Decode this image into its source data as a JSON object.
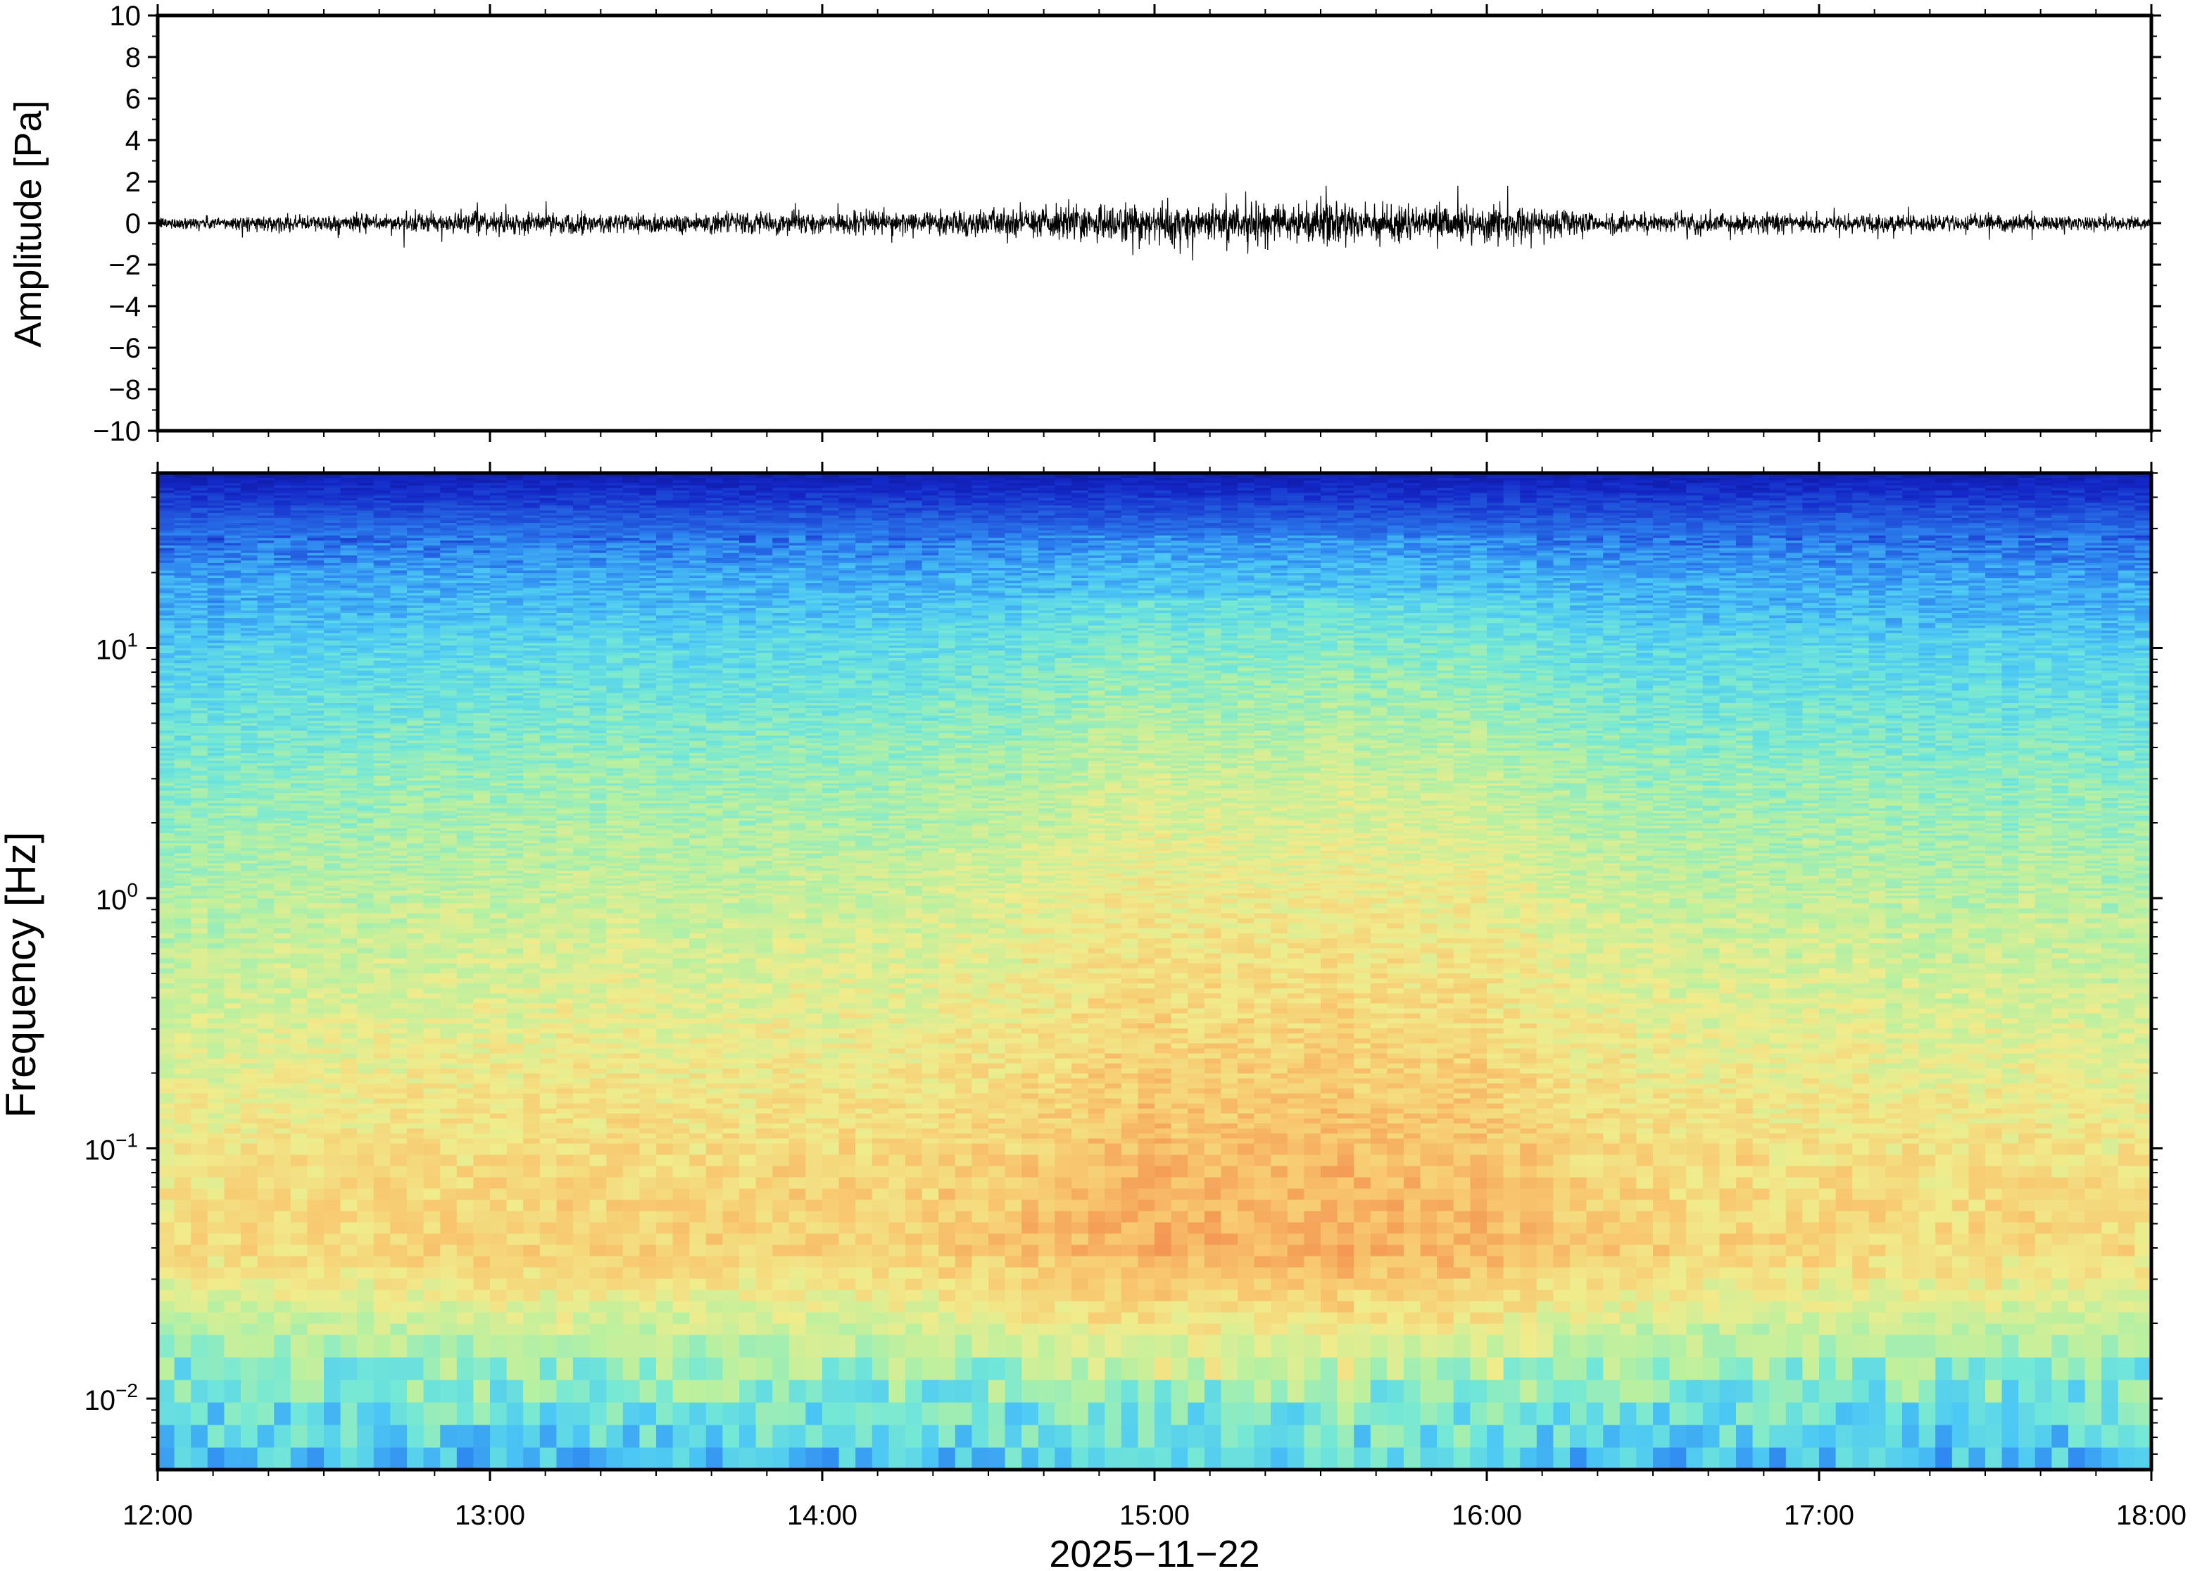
{
  "chart_data": [
    {
      "type": "line",
      "name": "waveform",
      "ylabel": "Amplitude [Pa]",
      "xlabel": "",
      "ylim": [
        -10,
        10
      ],
      "yticks": [
        "10",
        "8",
        "6",
        "4",
        "2",
        "0",
        "−2",
        "−4",
        "−6",
        "−8",
        "−10"
      ],
      "ytick_values": [
        10,
        8,
        6,
        4,
        2,
        0,
        -2,
        -4,
        -6,
        -8,
        -10
      ],
      "xlim": [
        "12:00",
        "18:00"
      ],
      "envelope": {
        "x_hours": [
          12.0,
          12.5,
          13.0,
          13.5,
          14.0,
          14.5,
          14.8,
          15.0,
          15.3,
          15.6,
          16.0,
          16.4,
          17.0,
          17.5,
          18.0
        ],
        "amplitude_pa": [
          0.25,
          0.35,
          0.45,
          0.45,
          0.45,
          0.55,
          0.8,
          0.85,
          0.8,
          0.85,
          0.75,
          0.45,
          0.4,
          0.35,
          0.3
        ]
      },
      "grid": false
    },
    {
      "type": "heatmap",
      "name": "spectrogram",
      "ylabel": "Frequency [Hz]",
      "xlabel": "2025−11−22",
      "xticks": [
        "12:00",
        "13:00",
        "14:00",
        "15:00",
        "16:00",
        "17:00",
        "18:00"
      ],
      "xtick_hours": [
        12,
        13,
        14,
        15,
        16,
        17,
        18
      ],
      "yscale": "log",
      "ylim_hz": [
        0.0052,
        50
      ],
      "yticks": [
        {
          "base": "10",
          "exp": "1",
          "value": 10
        },
        {
          "base": "10",
          "exp": "0",
          "value": 1
        },
        {
          "base": "10",
          "exp": "−1",
          "value": 0.1
        },
        {
          "base": "10",
          "exp": "−2",
          "value": 0.01
        }
      ],
      "colormap": [
        "#0a0a78",
        "#1428c8",
        "#2e86f0",
        "#4cc8f4",
        "#74e8d6",
        "#b8f0a0",
        "#f0ec8c",
        "#f8c870",
        "#f49a54",
        "#e85a3a"
      ],
      "power_profile_log10hz": {
        "log10_freq": [
          -2.3,
          -2.0,
          -1.7,
          -1.4,
          -1.1,
          -0.8,
          -0.5,
          0.0,
          0.5,
          1.0,
          1.3,
          1.7
        ],
        "relative_power": [
          0.32,
          0.45,
          0.62,
          0.76,
          0.74,
          0.7,
          0.66,
          0.6,
          0.52,
          0.4,
          0.28,
          0.08
        ]
      },
      "grid": false
    }
  ]
}
